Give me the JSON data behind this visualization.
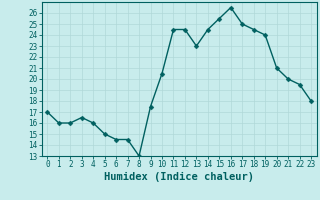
{
  "x": [
    0,
    1,
    2,
    3,
    4,
    5,
    6,
    7,
    8,
    9,
    10,
    11,
    12,
    13,
    14,
    15,
    16,
    17,
    18,
    19,
    20,
    21,
    22,
    23
  ],
  "y": [
    17,
    16,
    16,
    16.5,
    16,
    15,
    14.5,
    14.5,
    13,
    17.5,
    20.5,
    24.5,
    24.5,
    23,
    24.5,
    25.5,
    26.5,
    25,
    24.5,
    24,
    21,
    20,
    19.5,
    18
  ],
  "xlabel": "Humidex (Indice chaleur)",
  "xlim": [
    -0.5,
    23.5
  ],
  "ylim": [
    13,
    27
  ],
  "yticks": [
    13,
    14,
    15,
    16,
    17,
    18,
    19,
    20,
    21,
    22,
    23,
    24,
    25,
    26
  ],
  "xticks": [
    0,
    1,
    2,
    3,
    4,
    5,
    6,
    7,
    8,
    9,
    10,
    11,
    12,
    13,
    14,
    15,
    16,
    17,
    18,
    19,
    20,
    21,
    22,
    23
  ],
  "line_color": "#006060",
  "marker_color": "#006060",
  "bg_color": "#c8ecec",
  "grid_color": "#b0d8d8",
  "label_color": "#006060",
  "tick_fontsize": 5.5,
  "xlabel_fontsize": 7.5,
  "line_width": 1.0,
  "marker_size": 2.5
}
